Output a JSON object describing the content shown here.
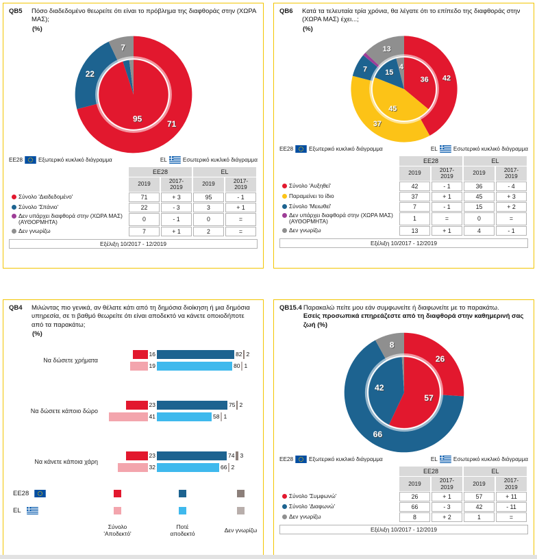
{
  "colors": {
    "red": "#e2182e",
    "blue": "#1d6390",
    "yellow": "#fcc317",
    "purple": "#9e3d97",
    "gray": "#8f8f8f",
    "dkgray": "#8c7f7a",
    "pink": "#f3a5ad",
    "ltblue": "#3fb9ed",
    "ltgray": "#b8aeab",
    "panel_border": "#f2c500",
    "header_bg": "#d9d9d9"
  },
  "legend": {
    "ee28": "EE28",
    "el": "EL",
    "outer": "Εξωτερικό κυκλικό διάγραμμα",
    "inner": "Εσωτερικό κυκλικό διάγραμμα"
  },
  "chart_data": [
    {
      "id": "qb5",
      "code": "QB5",
      "type": "pie",
      "title": "Πόσο διαδεδομένο θεωρείτε ότι είναι το πρόβλημα της διαφθοράς στην (ΧΩΡΑ ΜΑΣ);",
      "unit": "(%)",
      "categories": [
        "Σύνολο 'Διαδεδομένο'",
        "Σύνολο 'Σπάνιο'",
        "Δεν υπάρχει διαφθορά στην (ΧΩΡΑ ΜΑΣ) (ΑΥΘΟΡΜΗΤΑ)",
        "Δεν γνωρίζω"
      ],
      "slice_colors": [
        "red",
        "blue",
        "purple",
        "gray"
      ],
      "series": [
        {
          "name": "EE28",
          "ring": "outer",
          "values": [
            71,
            22,
            0,
            7
          ]
        },
        {
          "name": "EL",
          "ring": "inner",
          "values": [
            95,
            3,
            0,
            2
          ]
        }
      ],
      "table": {
        "col_groups": [
          "EE28",
          "EL"
        ],
        "sub_cols": [
          "2019",
          "2017-\n2019",
          "2019",
          "2017-\n2019"
        ],
        "rows": [
          {
            "label": "Σύνολο 'Διαδεδομένο'",
            "color": "red",
            "values": [
              "71",
              "+ 3",
              "95",
              "- 1"
            ]
          },
          {
            "label": "Σύνολο 'Σπάνιο'",
            "color": "blue",
            "values": [
              "22",
              "- 3",
              "3",
              "+ 1"
            ]
          },
          {
            "label": "Δεν υπάρχει διαφθορά στην (ΧΩΡΑ ΜΑΣ) (ΑΥΘΟΡΜΗΤΑ)",
            "color": "purple",
            "values": [
              "0",
              "- 1",
              "0",
              "="
            ]
          },
          {
            "label": "Δεν γνωρίζω",
            "color": "gray",
            "values": [
              "7",
              "+ 1",
              "2",
              "="
            ]
          }
        ],
        "footer": "Εξέλιξη 10/2017 - 12/2019"
      }
    },
    {
      "id": "qb6",
      "code": "QB6",
      "type": "pie",
      "title": "Κατά τα τελευταία τρία χρόνια, θα λέγατε ότι το επίπεδο της διαφθοράς στην (ΧΩΡΑ ΜΑΣ) έχει...;",
      "unit": "(%)",
      "categories": [
        "Σύνολο 'Αυξηθεί'",
        "Παραμείνει το ίδιο",
        "Σύνολο 'Μειωθεί'",
        "Δεν υπάρχει διαφθορά στην (ΧΩΡΑ ΜΑΣ) (ΑΥΘΟΡΜΗΤΑ)",
        "Δεν γνωρίζω"
      ],
      "slice_colors": [
        "red",
        "yellow",
        "blue",
        "purple",
        "gray"
      ],
      "series": [
        {
          "name": "EE28",
          "ring": "outer",
          "values": [
            42,
            37,
            7,
            1,
            13
          ]
        },
        {
          "name": "EL",
          "ring": "inner",
          "values": [
            36,
            45,
            15,
            0,
            4
          ]
        }
      ],
      "table": {
        "col_groups": [
          "EE28",
          "EL"
        ],
        "sub_cols": [
          "2019",
          "2017-\n2019",
          "2019",
          "2017-\n2019"
        ],
        "rows": [
          {
            "label": "Σύνολο 'Αυξηθεί'",
            "color": "red",
            "values": [
              "42",
              "- 1",
              "36",
              "- 4"
            ]
          },
          {
            "label": "Παραμείνει το ίδιο",
            "color": "yellow",
            "values": [
              "37",
              "+ 1",
              "45",
              "+ 3"
            ]
          },
          {
            "label": "Σύνολο 'Μειωθεί'",
            "color": "blue",
            "values": [
              "7",
              "- 1",
              "15",
              "+ 2"
            ]
          },
          {
            "label": "Δεν υπάρχει διαφθορά στην (ΧΩΡΑ ΜΑΣ) (ΑΥΘΟΡΜΗΤΑ)",
            "color": "purple",
            "values": [
              "1",
              "=",
              "0",
              "="
            ]
          },
          {
            "label": "Δεν γνωρίζω",
            "color": "gray",
            "values": [
              "13",
              "+ 1",
              "4",
              "- 1"
            ]
          }
        ],
        "footer": "Εξέλιξη 10/2017 - 12/2019"
      }
    },
    {
      "id": "qb4",
      "code": "QB4",
      "type": "bar",
      "title": "Μιλώντας πιο γενικά, αν θέλατε κάτι από τη δημόσια διοίκηση ή μια δημόσια υπηρεσία, σε τι βαθμό θεωρείτε ότι είναι αποδεκτό να κάνετε οποιοδήποτε από τα παρακάτω;",
      "unit": "(%)",
      "categories": [
        "Να δώσετε χρήματα",
        "Να δώσετε κάποιο δώρο",
        "Να κάνετε κάποια χάρη"
      ],
      "series": [
        {
          "name": "EE28",
          "colors": [
            "red",
            "blue",
            "dkgray"
          ],
          "rows": [
            [
              16,
              82,
              2
            ],
            [
              23,
              75,
              2
            ],
            [
              23,
              74,
              3
            ]
          ]
        },
        {
          "name": "EL",
          "colors": [
            "pink",
            "ltblue",
            "ltgray"
          ],
          "rows": [
            [
              19,
              80,
              1
            ],
            [
              41,
              58,
              1
            ],
            [
              32,
              66,
              2
            ]
          ]
        }
      ],
      "legend_cols": [
        "Σύνολο 'Αποδεκτό'",
        "Ποτέ αποδεκτό",
        "Δεν γνωρίζω"
      ]
    },
    {
      "id": "qb15",
      "code": "QB15.4",
      "type": "pie",
      "title": "Παρακαλώ πείτε μου εάν συμφωνείτε ή διαφωνείτε με το παρακάτω.",
      "title_bold": "Εσείς προσωπικά επηρεάζεστε από τη διαφθορά στην καθημερινή σας ζωή (%)",
      "categories": [
        "Σύνολο 'Συμφωνώ'",
        "Σύνολο 'Διαφωνώ'",
        "Δεν γνωρίζω"
      ],
      "slice_colors": [
        "red",
        "blue",
        "gray"
      ],
      "series": [
        {
          "name": "EE28",
          "ring": "outer",
          "values": [
            26,
            66,
            8
          ]
        },
        {
          "name": "EL",
          "ring": "inner",
          "values": [
            57,
            42,
            1
          ]
        }
      ],
      "table": {
        "col_groups": [
          "EE28",
          "EL"
        ],
        "sub_cols": [
          "2019",
          "2017-\n2019",
          "2019",
          "2017-\n2019"
        ],
        "rows": [
          {
            "label": "Σύνολο 'Συμφωνώ'",
            "color": "red",
            "values": [
              "26",
              "+ 1",
              "57",
              "+ 11"
            ]
          },
          {
            "label": "Σύνολο 'Διαφωνώ'",
            "color": "blue",
            "values": [
              "66",
              "- 3",
              "42",
              "- 11"
            ]
          },
          {
            "label": "Δεν γνωρίζω",
            "color": "gray",
            "values": [
              "8",
              "+ 2",
              "1",
              "="
            ]
          }
        ],
        "footer": "Εξέλιξη 10/2017 - 12/2019"
      }
    }
  ]
}
